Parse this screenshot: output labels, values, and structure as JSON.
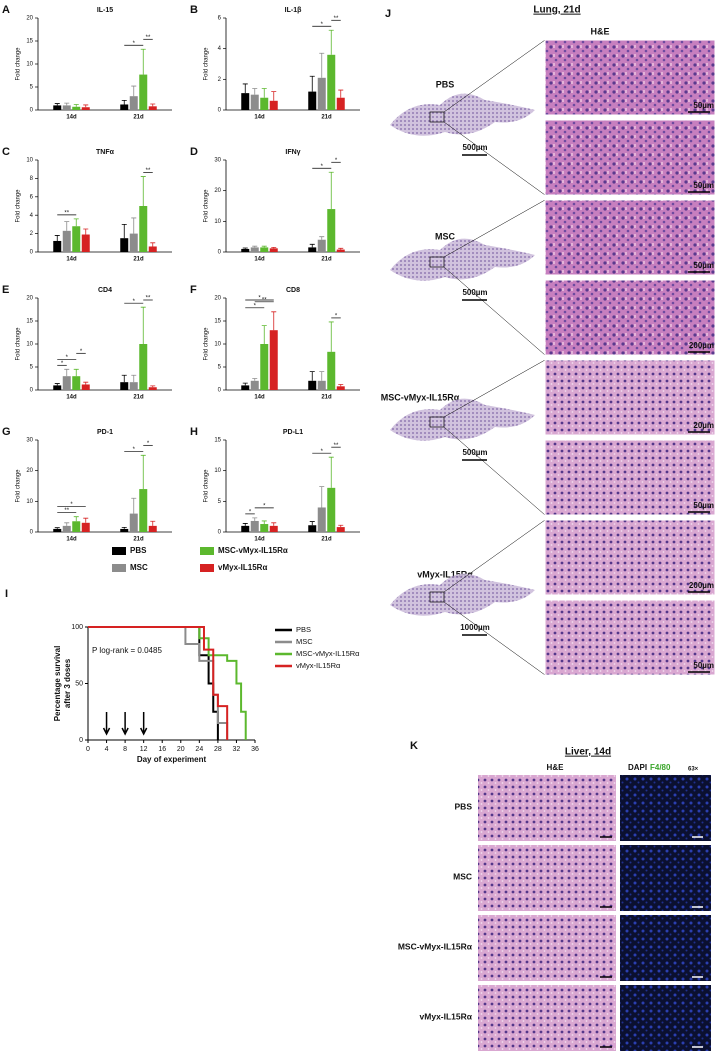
{
  "chart_data": [
    {
      "panel": "A",
      "type": "bar",
      "title": "IL-15",
      "ylabel": "Fold change",
      "categories": [
        "14d",
        "21d"
      ],
      "ylim": [
        0,
        20
      ],
      "yticks": [
        0,
        5,
        10,
        15,
        20
      ],
      "series": [
        {
          "name": "PBS",
          "color": "#000000",
          "values": [
            1,
            1.2
          ],
          "errors": [
            0.4,
            0.9
          ]
        },
        {
          "name": "MSC",
          "color": "#8c8c8c",
          "values": [
            1,
            3
          ],
          "errors": [
            0.5,
            2.2
          ]
        },
        {
          "name": "MSC-vMyx-IL15Rα",
          "color": "#5cb82e",
          "values": [
            0.7,
            7.7
          ],
          "errors": [
            0.5,
            5.5
          ]
        },
        {
          "name": "vMyx-IL15Rα",
          "color": "#d62222",
          "values": [
            0.6,
            0.8
          ],
          "errors": [
            0.5,
            0.5
          ]
        }
      ],
      "significance": [
        {
          "label": "*",
          "category": 1,
          "between": [
            0,
            2
          ]
        },
        {
          "label": "**",
          "category": 1,
          "between": [
            2,
            3
          ]
        }
      ]
    },
    {
      "panel": "B",
      "type": "bar",
      "title": "IL-1β",
      "ylabel": "Fold change",
      "categories": [
        "14d",
        "21d"
      ],
      "ylim": [
        0,
        6
      ],
      "yticks": [
        0,
        2,
        4,
        6
      ],
      "series": [
        {
          "name": "PBS",
          "color": "#000000",
          "values": [
            1.1,
            1.2
          ],
          "errors": [
            0.6,
            1.0
          ]
        },
        {
          "name": "MSC",
          "color": "#8c8c8c",
          "values": [
            1.0,
            2.1
          ],
          "errors": [
            0.4,
            1.6
          ]
        },
        {
          "name": "MSC-vMyx-IL15Rα",
          "color": "#5cb82e",
          "values": [
            0.8,
            3.6
          ],
          "errors": [
            0.6,
            1.6
          ]
        },
        {
          "name": "vMyx-IL15Rα",
          "color": "#d62222",
          "values": [
            0.6,
            0.8
          ],
          "errors": [
            0.6,
            0.5
          ]
        }
      ],
      "significance": [
        {
          "label": "*",
          "category": 1,
          "between": [
            0,
            2
          ]
        },
        {
          "label": "**",
          "category": 1,
          "between": [
            2,
            3
          ]
        }
      ]
    },
    {
      "panel": "C",
      "type": "bar",
      "title": "TNFα",
      "ylabel": "Fold change",
      "categories": [
        "14d",
        "21d"
      ],
      "ylim": [
        0,
        10
      ],
      "yticks": [
        0,
        2,
        4,
        6,
        8,
        10
      ],
      "series": [
        {
          "name": "PBS",
          "color": "#000000",
          "values": [
            1.2,
            1.5
          ],
          "errors": [
            0.6,
            1.5
          ]
        },
        {
          "name": "MSC",
          "color": "#8c8c8c",
          "values": [
            2.3,
            2.0
          ],
          "errors": [
            1.0,
            1.7
          ]
        },
        {
          "name": "MSC-vMyx-IL15Rα",
          "color": "#5cb82e",
          "values": [
            2.8,
            5.0
          ],
          "errors": [
            0.8,
            3.2
          ]
        },
        {
          "name": "vMyx-IL15Rα",
          "color": "#d62222",
          "values": [
            1.9,
            0.6
          ],
          "errors": [
            0.6,
            0.4
          ]
        }
      ],
      "significance": [
        {
          "label": "**",
          "category": 0,
          "between": [
            0,
            2
          ]
        },
        {
          "label": "**",
          "category": 1,
          "between": [
            2,
            3
          ]
        }
      ]
    },
    {
      "panel": "D",
      "type": "bar",
      "title": "IFNγ",
      "ylabel": "Fold change",
      "categories": [
        "14d",
        "21d"
      ],
      "ylim": [
        0,
        30
      ],
      "yticks": [
        0,
        10,
        20,
        30
      ],
      "series": [
        {
          "name": "PBS",
          "color": "#000000",
          "values": [
            1,
            1.5
          ],
          "errors": [
            0.3,
            1
          ]
        },
        {
          "name": "MSC",
          "color": "#8c8c8c",
          "values": [
            1.5,
            4
          ],
          "errors": [
            0.4,
            1
          ]
        },
        {
          "name": "MSC-vMyx-IL15Rα",
          "color": "#5cb82e",
          "values": [
            1.5,
            14
          ],
          "errors": [
            0.4,
            12
          ]
        },
        {
          "name": "vMyx-IL15Rα",
          "color": "#d62222",
          "values": [
            1.2,
            0.8
          ],
          "errors": [
            0.3,
            0.4
          ]
        }
      ],
      "significance": [
        {
          "label": "*",
          "category": 1,
          "between": [
            0,
            2
          ]
        },
        {
          "label": "*",
          "category": 1,
          "between": [
            2,
            3
          ]
        }
      ]
    },
    {
      "panel": "E",
      "type": "bar",
      "title": "CD4",
      "ylabel": "Fold change",
      "categories": [
        "14d",
        "21d"
      ],
      "ylim": [
        0,
        20
      ],
      "yticks": [
        0,
        5,
        10,
        15,
        20
      ],
      "series": [
        {
          "name": "PBS",
          "color": "#000000",
          "values": [
            1,
            1.7
          ],
          "errors": [
            0.4,
            1.5
          ]
        },
        {
          "name": "MSC",
          "color": "#8c8c8c",
          "values": [
            3,
            1.7
          ],
          "errors": [
            1.5,
            1.5
          ]
        },
        {
          "name": "MSC-vMyx-IL15Rα",
          "color": "#5cb82e",
          "values": [
            3,
            10
          ],
          "errors": [
            1.5,
            8
          ]
        },
        {
          "name": "vMyx-IL15Rα",
          "color": "#d62222",
          "values": [
            1.2,
            0.6
          ],
          "errors": [
            0.5,
            0.3
          ]
        }
      ],
      "significance": [
        {
          "label": "*",
          "category": 0,
          "between": [
            0,
            1
          ]
        },
        {
          "label": "*",
          "category": 0,
          "between": [
            0,
            2
          ]
        },
        {
          "label": "*",
          "category": 0,
          "between": [
            2,
            3
          ]
        },
        {
          "label": "*",
          "category": 1,
          "between": [
            0,
            2
          ]
        },
        {
          "label": "**",
          "category": 1,
          "between": [
            2,
            3
          ]
        }
      ]
    },
    {
      "panel": "F",
      "type": "bar",
      "title": "CD8",
      "ylabel": "Fold change",
      "categories": [
        "14d",
        "21d"
      ],
      "ylim": [
        0,
        20
      ],
      "yticks": [
        0,
        5,
        10,
        15,
        20
      ],
      "series": [
        {
          "name": "PBS",
          "color": "#000000",
          "values": [
            1,
            2
          ],
          "errors": [
            0.5,
            2
          ]
        },
        {
          "name": "MSC",
          "color": "#8c8c8c",
          "values": [
            2,
            2
          ],
          "errors": [
            0.5,
            2
          ]
        },
        {
          "name": "MSC-vMyx-IL15Rα",
          "color": "#5cb82e",
          "values": [
            10,
            8.3
          ],
          "errors": [
            4,
            6.5
          ]
        },
        {
          "name": "vMyx-IL15Rα",
          "color": "#d62222",
          "values": [
            13,
            0.8
          ],
          "errors": [
            4,
            0.4
          ]
        }
      ],
      "significance": [
        {
          "label": "*",
          "category": 0,
          "between": [
            0,
            2
          ]
        },
        {
          "label": "**",
          "category": 0,
          "between": [
            1,
            3
          ]
        },
        {
          "label": "*",
          "category": 0,
          "between": [
            0,
            3
          ]
        },
        {
          "label": "*",
          "category": 1,
          "between": [
            2,
            3
          ]
        }
      ]
    },
    {
      "panel": "G",
      "type": "bar",
      "title": "PD-1",
      "ylabel": "Fold change",
      "categories": [
        "14d",
        "21d"
      ],
      "ylim": [
        0,
        30
      ],
      "yticks": [
        0,
        10,
        20,
        30
      ],
      "series": [
        {
          "name": "PBS",
          "color": "#000000",
          "values": [
            1,
            1
          ],
          "errors": [
            0.4,
            0.5
          ]
        },
        {
          "name": "MSC",
          "color": "#8c8c8c",
          "values": [
            2,
            6
          ],
          "errors": [
            1,
            5
          ]
        },
        {
          "name": "MSC-vMyx-IL15Rα",
          "color": "#5cb82e",
          "values": [
            3.5,
            14
          ],
          "errors": [
            1.5,
            11
          ]
        },
        {
          "name": "vMyx-IL15Rα",
          "color": "#d62222",
          "values": [
            3,
            2
          ],
          "errors": [
            1.5,
            1.5
          ]
        }
      ],
      "significance": [
        {
          "label": "**",
          "category": 0,
          "between": [
            0,
            2
          ]
        },
        {
          "label": "*",
          "category": 0,
          "between": [
            0,
            3
          ]
        },
        {
          "label": "*",
          "category": 1,
          "between": [
            0,
            2
          ]
        },
        {
          "label": "*",
          "category": 1,
          "between": [
            2,
            3
          ]
        }
      ]
    },
    {
      "panel": "H",
      "type": "bar",
      "title": "PD-L1",
      "ylabel": "Fold change",
      "categories": [
        "14d",
        "21d"
      ],
      "ylim": [
        0,
        15
      ],
      "yticks": [
        0,
        5,
        10,
        15
      ],
      "series": [
        {
          "name": "PBS",
          "color": "#000000",
          "values": [
            1,
            1.1
          ],
          "errors": [
            0.4,
            0.6
          ]
        },
        {
          "name": "MSC",
          "color": "#8c8c8c",
          "values": [
            1.8,
            4
          ],
          "errors": [
            0.5,
            3.4
          ]
        },
        {
          "name": "MSC-vMyx-IL15Rα",
          "color": "#5cb82e",
          "values": [
            1.3,
            7.2
          ],
          "errors": [
            0.5,
            5
          ]
        },
        {
          "name": "vMyx-IL15Rα",
          "color": "#d62222",
          "values": [
            1,
            0.8
          ],
          "errors": [
            0.5,
            0.3
          ]
        }
      ],
      "significance": [
        {
          "label": "*",
          "category": 0,
          "between": [
            0,
            1
          ]
        },
        {
          "label": "*",
          "category": 0,
          "between": [
            1,
            3
          ]
        },
        {
          "label": "*",
          "category": 1,
          "between": [
            0,
            2
          ]
        },
        {
          "label": "**",
          "category": 1,
          "between": [
            2,
            3
          ]
        }
      ]
    },
    {
      "panel": "I",
      "type": "survival",
      "ylabel": [
        "Percentage survival",
        "after 3 doses"
      ],
      "xlabel": "Day of experiment",
      "annotation": "P log-rank = 0.0485",
      "xlim": [
        0,
        36
      ],
      "xticks": [
        0,
        4,
        8,
        12,
        16,
        20,
        24,
        28,
        32,
        36
      ],
      "ylim": [
        0,
        100
      ],
      "yticks": [
        0,
        50,
        100
      ],
      "doses": [
        4,
        8,
        12
      ],
      "series": [
        {
          "name": "PBS",
          "color": "#000000",
          "x": [
            0,
            24,
            26,
            27,
            28
          ],
          "y": [
            100,
            75,
            50,
            25,
            0
          ]
        },
        {
          "name": "MSC",
          "color": "#8c8c8c",
          "x": [
            0,
            21,
            24,
            27,
            28,
            30
          ],
          "y": [
            100,
            85,
            70,
            40,
            15,
            0
          ]
        },
        {
          "name": "MSC-vMyx-IL15Rα",
          "color": "#5cb82e",
          "x": [
            0,
            24,
            26,
            30,
            32,
            33,
            34
          ],
          "y": [
            100,
            90,
            75,
            70,
            50,
            25,
            0
          ]
        },
        {
          "name": "vMyx-IL15Rα",
          "color": "#d62222",
          "x": [
            0,
            25,
            27,
            28,
            30
          ],
          "y": [
            100,
            80,
            40,
            30,
            0
          ]
        }
      ]
    }
  ],
  "lung": {
    "panel": "J",
    "title": "Lung, 21d",
    "stain": "H&E",
    "rows": [
      {
        "label": "PBS",
        "scale_bars": [
          "500µm",
          "50µm",
          "50µm"
        ]
      },
      {
        "label": "MSC",
        "scale_bars": [
          "500µm",
          "50µm",
          "200µm"
        ]
      },
      {
        "label": "MSC-vMyx-IL15Rα",
        "scale_bars": [
          "500µm",
          "20µm",
          "50µm"
        ]
      },
      {
        "label": "vMyx-IL15Rα",
        "scale_bars": [
          "1000µm",
          "200µm",
          "50µm"
        ]
      }
    ]
  },
  "liver": {
    "panel": "K",
    "title": "Liver, 14d",
    "stain": "H&E",
    "dapi": "DAPI",
    "marker": "F4/80",
    "magnification": "63×",
    "rows": [
      "PBS",
      "MSC",
      "MSC-vMyx-IL15Rα",
      "vMyx-IL15Rα"
    ]
  }
}
